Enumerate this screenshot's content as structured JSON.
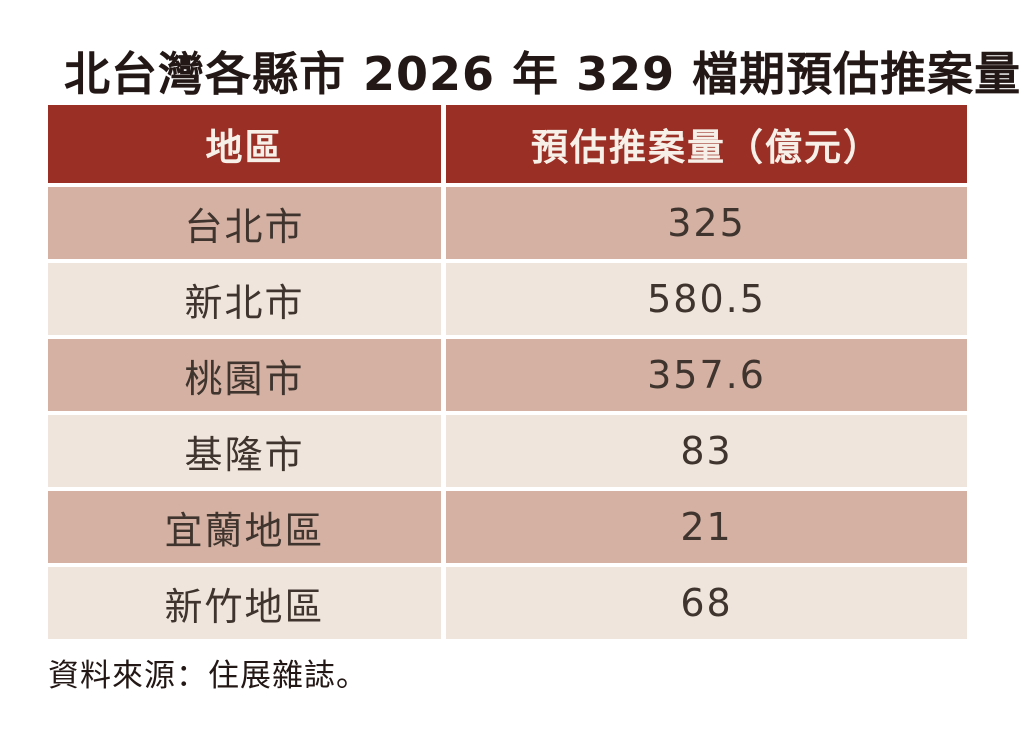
{
  "title": "北台灣各縣市 2026 年 329 檔期預估推案量",
  "table": {
    "headers": [
      "地區",
      "預估推案量（億元）"
    ],
    "rows": [
      [
        "台北市",
        "325"
      ],
      [
        "新北市",
        "580.5"
      ],
      [
        "桃園市",
        "357.6"
      ],
      [
        "基隆市",
        "83"
      ],
      [
        "宜蘭地區",
        "21"
      ],
      [
        "新竹地區",
        "68"
      ]
    ]
  },
  "source_note": "資料來源：住展雜誌。",
  "colors": {
    "header_bg": "#9A2F26",
    "header_text": "#F7F0E8",
    "row_odd_bg": "#D5B1A3",
    "row_even_bg": "#F0E5DD",
    "data_text": "#3F352E",
    "title_text": "#231815",
    "page_bg": "#FFFFFF"
  },
  "chart_data": {
    "type": "table",
    "title": "北台灣各縣市 2026 年 329 檔期預估推案量",
    "columns": [
      "地區",
      "預估推案量（億元）"
    ],
    "categories": [
      "台北市",
      "新北市",
      "桃園市",
      "基隆市",
      "宜蘭地區",
      "新竹地區"
    ],
    "values": [
      325,
      580.5,
      357.6,
      83,
      21,
      68
    ],
    "unit": "億元",
    "source": "資料來源：住展雜誌。",
    "legend": "none",
    "grid": "off"
  }
}
